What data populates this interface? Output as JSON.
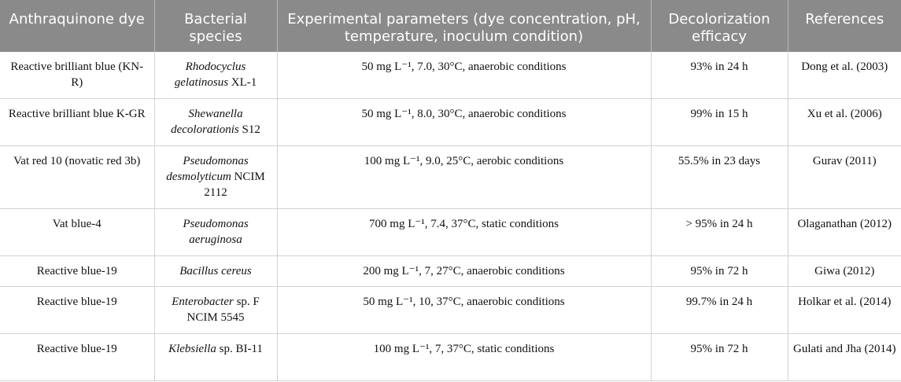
{
  "headers": [
    "Anthraquinone dye",
    "Bacterial species",
    "Experimental parameters (dye concentration, pH, temperature, inoculum condition)",
    "Decolorization efficacy",
    "References"
  ],
  "rows": [
    {
      "dye": "Reactive brilliant blue (KN-R)",
      "species_italic": "Rhodocyclus gelatinosus",
      "species_strain": " XL-1",
      "params": "50 mg L⁻¹, 7.0, 30°C, anaerobic conditions",
      "efficacy": "93% in 24 h",
      "ref": "Dong et al. (2003)"
    },
    {
      "dye": "Reactive brilliant blue K-GR",
      "species_italic": "Shewanella decolorationis",
      "species_strain": " S12",
      "params": "50 mg L⁻¹, 8.0, 30°C, anaerobic conditions",
      "efficacy": "99% in 15 h",
      "ref": "Xu et al. (2006)"
    },
    {
      "dye": "Vat red 10 (novatic red 3b)",
      "species_italic": "Pseudomonas desmolyticum",
      "species_strain": " NCIM 2112",
      "params": "100 mg L⁻¹, 9.0, 25°C, aerobic conditions",
      "efficacy": "55.5% in 23 days",
      "ref": "Gurav (2011)"
    },
    {
      "dye": "Vat blue-4",
      "species_italic": "Pseudomonas aeruginosa",
      "species_strain": "",
      "params": "700 mg L⁻¹, 7.4, 37°C, static conditions",
      "efficacy": "> 95% in 24 h",
      "ref": "Olaganathan (2012)"
    },
    {
      "dye": "Reactive blue-19",
      "species_italic": "Bacillus cereus",
      "species_strain": "",
      "params": "200 mg L⁻¹, 7, 27°C, anaerobic conditions",
      "efficacy": "95% in 72 h",
      "ref": "Giwa (2012)"
    },
    {
      "dye": "Reactive blue-19",
      "species_italic": "Enterobacter",
      "species_strain": " sp. F NCIM 5545",
      "params": "50 mg L⁻¹, 10, 37°C, anaerobic conditions",
      "efficacy": "99.7% in 24 h",
      "ref": "Holkar et al. (2014)"
    },
    {
      "dye": "Reactive blue-19",
      "species_italic": "Klebsiella",
      "species_strain": " sp. BI-11",
      "params": "100 mg L⁻¹, 7, 37°C, static conditions",
      "efficacy": "95% in 72 h",
      "ref": "Gulati and Jha (2014)"
    }
  ]
}
